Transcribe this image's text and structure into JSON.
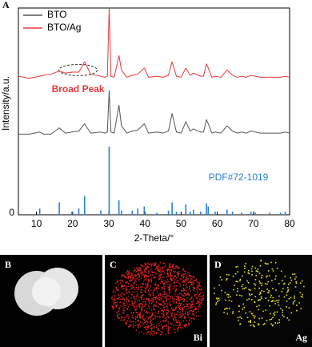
{
  "figure_label": "A",
  "images": [
    {
      "label": "B"
    },
    {
      "label": "C",
      "element": "Bi"
    },
    {
      "label": "D",
      "element": "Ag"
    }
  ],
  "chart_data": {
    "type": "line",
    "xlabel": "2-Theta/°",
    "ylabel": "Intensity/a.u.",
    "xlim": [
      5,
      80
    ],
    "xticks": [
      10,
      20,
      30,
      40,
      50,
      60,
      70,
      80
    ],
    "ylim": [
      0,
      100
    ],
    "yticks": [
      0
    ],
    "legend": "upper left",
    "annotations": [
      {
        "text": "Broad Peak",
        "color": "#e8383a"
      },
      {
        "text": "PDF#72-1019",
        "color": "#2a7fd4"
      }
    ],
    "x": [
      5,
      8,
      10.9,
      12,
      14,
      16.3,
      18,
      19.8,
      21.7,
      23.3,
      25,
      27.8,
      29,
      29.6,
      30.1,
      30.6,
      31.5,
      32.8,
      33.5,
      35,
      36.5,
      38,
      39.8,
      41,
      43.3,
      45,
      46.5,
      47.5,
      48.7,
      50,
      51.3,
      52.5,
      53.4,
      55.4,
      56.2,
      57,
      57.5,
      58.5,
      59.4,
      61,
      62.7,
      64.2,
      65.5,
      66.7,
      68,
      69.3,
      70.5,
      72,
      74.5,
      76,
      77.5,
      78.8,
      80
    ],
    "series": [
      {
        "name": "BTO",
        "color": "#555555",
        "type": "line",
        "values": [
          39,
          39,
          40,
          39,
          39,
          42,
          39.5,
          40,
          40.5,
          44,
          39.5,
          40,
          39.5,
          40,
          60,
          40,
          39.5,
          53,
          43,
          39.5,
          40.5,
          41,
          44,
          39.5,
          40,
          39.5,
          40.5,
          49,
          40,
          39.5,
          45,
          40.5,
          41.5,
          40,
          40,
          46,
          44,
          39.5,
          40,
          39.5,
          43,
          40.5,
          39.5,
          40,
          39.5,
          40.5,
          40,
          39.5,
          39.5,
          39.5,
          39.5,
          40,
          39.5
        ]
      },
      {
        "name": "BTO/Ag",
        "color": "#e8383a",
        "type": "line",
        "values": [
          67,
          66,
          67,
          67.5,
          68,
          69.5,
          68.5,
          69,
          69,
          74,
          68,
          67,
          66.5,
          67,
          100,
          67,
          66.5,
          77,
          70,
          66.5,
          67.5,
          68,
          71,
          66.5,
          67,
          66.5,
          67.5,
          74,
          67,
          66.5,
          71,
          67.5,
          68.5,
          67,
          67,
          73,
          71,
          66.5,
          67,
          66.5,
          70,
          67.5,
          66.5,
          67,
          66.5,
          67.5,
          67,
          66.5,
          66.5,
          66.5,
          66.5,
          67,
          66.5
        ]
      },
      {
        "color": "#2a7fd4",
        "type": "stick",
        "x": [
          10.9,
          16.3,
          19.8,
          21.7,
          23.3,
          27.8,
          30.1,
          32.8,
          33.5,
          36.5,
          38,
          39.8,
          43.3,
          46.5,
          47.5,
          48.7,
          51.3,
          52.5,
          53.4,
          55.4,
          57,
          57.5,
          59.4,
          62.7,
          64.2,
          66.7,
          69.3,
          70.5,
          74.5,
          77.5,
          78.8
        ],
        "values": [
          3,
          6,
          1.5,
          3,
          9,
          2,
          33,
          7,
          2,
          2,
          3,
          4,
          1,
          2,
          6,
          1.5,
          5,
          1.5,
          2.5,
          1.5,
          5.5,
          4,
          1.5,
          2.5,
          1.5,
          1,
          1.5,
          1,
          1,
          1,
          1.5
        ]
      }
    ]
  }
}
